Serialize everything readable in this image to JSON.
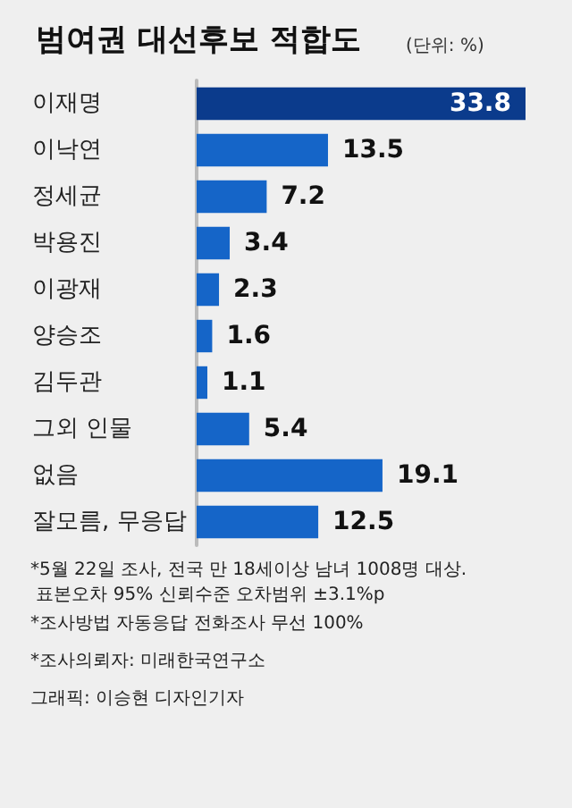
{
  "chart_data": {
    "type": "bar",
    "orientation": "horizontal",
    "title": "범여권 대선후보 적합도",
    "subtitle": "(단위: %)",
    "categories": [
      "이재명",
      "이낙연",
      "정세균",
      "박용진",
      "이광재",
      "양승조",
      "김두관",
      "그외 인물",
      "없음",
      "잘모름, 무응답"
    ],
    "values": [
      33.8,
      13.5,
      7.2,
      3.4,
      2.3,
      1.6,
      1.1,
      5.4,
      19.1,
      12.5
    ],
    "colors": [
      "#0b3b8c",
      "#1565c8",
      "#1565c8",
      "#1565c8",
      "#1565c8",
      "#1565c8",
      "#1565c8",
      "#1565c8",
      "#1565c8",
      "#1565c8"
    ],
    "data_labels": true,
    "annotations": [
      "*5월 22일 조사, 전국 만 18세이상 남녀 1008명 대상.\n 표본오차 95% 신뢰수준 오차범위 ±3.1%p",
      "*조사방법 자동응답 전화조사 무선 100%",
      "*조사의뢰자: 미래한국연구소",
      "그래픽: 이승현 디자인기자"
    ]
  }
}
